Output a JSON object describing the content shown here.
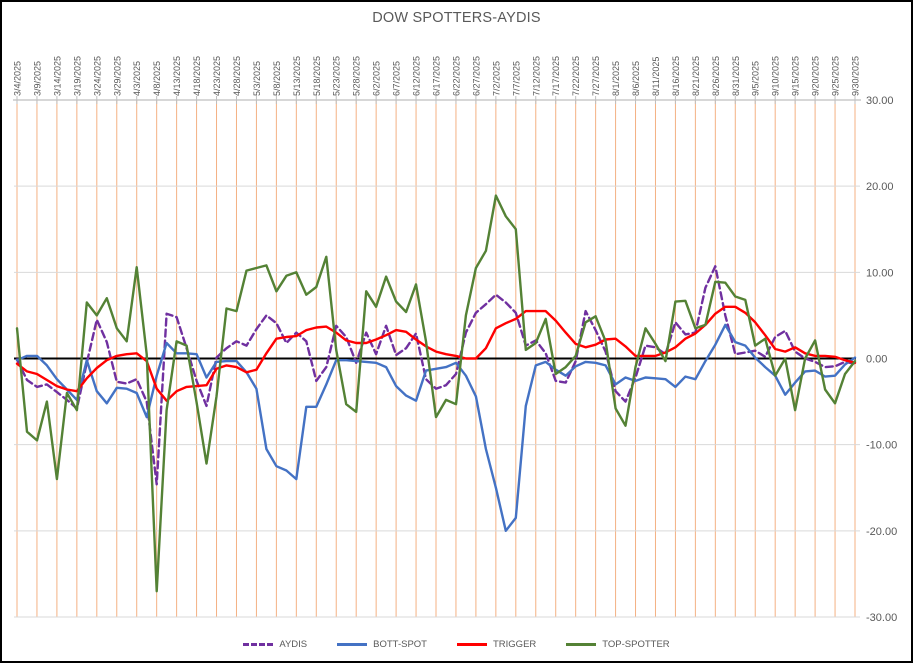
{
  "window": {
    "title": "DOW SPOTTERS-AYDIS"
  },
  "chart_data": {
    "type": "line",
    "title": "DOW SPOTTERS-AYDIS",
    "legend_position": "bottom",
    "ylim": [
      -30,
      30
    ],
    "y_ticks": [
      {
        "label": "30.00",
        "value": 30
      },
      {
        "label": "20.00",
        "value": 20
      },
      {
        "label": "10.00",
        "value": 10
      },
      {
        "label": "0.00",
        "value": 0
      },
      {
        "label": "-10.00",
        "value": -10
      },
      {
        "label": "-20.00",
        "value": -20
      },
      {
        "label": "-30.00",
        "value": -30
      }
    ],
    "x_labels": [
      "3/4/2025",
      "3/9/2025",
      "3/14/2025",
      "3/19/2025",
      "3/24/2025",
      "3/29/2025",
      "4/3/2025",
      "4/8/2025",
      "4/13/2025",
      "4/18/2025",
      "4/23/2025",
      "4/28/2025",
      "5/3/2025",
      "5/8/2025",
      "5/13/2025",
      "5/18/2025",
      "5/23/2025",
      "5/28/2025",
      "6/2/2025",
      "6/7/2025",
      "6/12/2025",
      "6/17/2025",
      "6/22/2025",
      "6/27/2025",
      "7/2/2025",
      "7/7/2025",
      "7/12/2025",
      "7/17/2025",
      "7/22/2025",
      "7/27/2025",
      "8/1/2025",
      "8/6/2025",
      "8/11/2025",
      "8/16/2025",
      "8/21/2025",
      "8/26/2025",
      "8/31/2025",
      "9/5/2025",
      "9/10/2025",
      "9/15/2025",
      "9/20/2025",
      "9/25/2025",
      "9/30/2025"
    ],
    "samples_per_label": 2,
    "grid": {
      "vertical_color": "#F4B183",
      "horizontal_color": "#D9D9D9",
      "axis_color": "#BFBFBF",
      "zero_line_color": "#000000",
      "label_color": "#595959"
    },
    "series": [
      {
        "name": "AYDIS",
        "color": "#7030A0",
        "dash": true,
        "values": [
          -0.1,
          -2.5,
          -3.3,
          -3.0,
          -3.9,
          -4.8,
          -5.8,
          -0.5,
          4.5,
          1.9,
          -2.7,
          -2.9,
          -2.4,
          -5.0,
          -14.6,
          5.2,
          4.8,
          1.2,
          -2.6,
          -5.5,
          0.1,
          1.2,
          2.0,
          1.5,
          3.4,
          5.0,
          4.1,
          1.8,
          3.0,
          2.0,
          -2.6,
          -1.0,
          3.8,
          2.5,
          -0.5,
          3.0,
          0.5,
          3.8,
          0.4,
          1.2,
          2.9,
          -2.4,
          -3.5,
          -3.1,
          -1.8,
          3.0,
          5.3,
          6.3,
          7.4,
          6.5,
          5.3,
          1.5,
          2.1,
          0.6,
          -2.6,
          -2.8,
          -0.3,
          5.5,
          3.3,
          0.8,
          -3.8,
          -5.0,
          -2.2,
          1.5,
          1.3,
          0.5,
          4.2,
          2.8,
          3.0,
          8.2,
          10.7,
          5.0,
          0.5,
          0.7,
          0.9,
          0.2,
          2.5,
          3.2,
          0.8,
          0.0,
          -0.4,
          -1.0,
          -0.9,
          -0.4,
          -0.6
        ]
      },
      {
        "name": "BOTT-SPOT",
        "color": "#4472C4",
        "dash": false,
        "values": [
          -0.2,
          0.3,
          0.3,
          -0.8,
          -2.4,
          -3.6,
          -4.8,
          -0.2,
          -3.8,
          -5.2,
          -3.4,
          -3.5,
          -4.0,
          -6.8,
          -2.0,
          1.8,
          0.6,
          0.6,
          0.5,
          -2.2,
          -0.4,
          -0.3,
          -0.3,
          -1.6,
          -3.5,
          -10.5,
          -12.5,
          -13.0,
          -14.0,
          -5.6,
          -5.6,
          -3.0,
          -0.2,
          -0.2,
          -0.3,
          -0.4,
          -0.5,
          -1.0,
          -3.2,
          -4.3,
          -4.9,
          -1.4,
          -1.2,
          -1.0,
          -0.5,
          -2.0,
          -4.4,
          -10.5,
          -15.0,
          -20.0,
          -18.5,
          -5.5,
          -0.8,
          -0.4,
          -1.3,
          -2.0,
          -0.9,
          -0.4,
          -0.5,
          -0.8,
          -3.0,
          -2.2,
          -2.6,
          -2.2,
          -2.3,
          -2.4,
          -3.3,
          -2.1,
          -2.4,
          -0.3,
          1.6,
          3.9,
          1.9,
          1.5,
          0.1,
          -1.0,
          -2.0,
          -4.2,
          -2.8,
          -1.5,
          -1.4,
          -2.1,
          -2.0,
          -0.7,
          0.1
        ]
      },
      {
        "name": "TRIGGER",
        "color": "#FF0000",
        "dash": false,
        "values": [
          -0.6,
          -1.5,
          -1.8,
          -2.5,
          -3.2,
          -3.6,
          -3.8,
          -2.3,
          -1.1,
          -0.2,
          0.3,
          0.5,
          0.6,
          -0.3,
          -3.5,
          -4.9,
          -3.8,
          -3.3,
          -3.2,
          -3.1,
          -1.2,
          -0.8,
          -1.0,
          -1.6,
          -1.3,
          0.6,
          2.3,
          2.5,
          2.6,
          3.3,
          3.6,
          3.7,
          3.0,
          2.1,
          1.8,
          1.8,
          2.2,
          2.7,
          3.3,
          3.1,
          2.2,
          1.4,
          0.8,
          0.5,
          0.3,
          0.0,
          0.0,
          1.2,
          3.5,
          4.1,
          4.6,
          5.5,
          5.5,
          5.5,
          4.4,
          3.0,
          1.7,
          1.3,
          1.6,
          2.2,
          2.3,
          1.4,
          0.3,
          0.3,
          0.3,
          0.7,
          1.3,
          2.3,
          2.9,
          3.9,
          5.2,
          6.0,
          6.0,
          5.3,
          4.2,
          2.7,
          1.1,
          0.8,
          1.3,
          0.6,
          0.3,
          0.3,
          0.2,
          -0.2,
          -0.5
        ]
      },
      {
        "name": "TOP-SPOTTER",
        "color": "#548235",
        "dash": false,
        "values": [
          3.5,
          -8.5,
          -9.5,
          -5.0,
          -14.0,
          -4.0,
          -6.0,
          6.5,
          5.0,
          7.0,
          3.5,
          2.0,
          10.6,
          0.5,
          -27.0,
          -6.0,
          2.0,
          1.5,
          -5.1,
          -12.2,
          -4.4,
          5.8,
          5.5,
          10.2,
          10.5,
          10.8,
          7.8,
          9.6,
          10.0,
          7.4,
          8.3,
          11.8,
          1.0,
          -5.3,
          -6.2,
          7.8,
          6.0,
          9.5,
          6.6,
          5.4,
          8.6,
          2.0,
          -6.8,
          -4.8,
          -5.3,
          5.0,
          10.5,
          12.5,
          18.9,
          16.5,
          15.0,
          1.0,
          1.8,
          4.6,
          -1.8,
          -1.0,
          0.3,
          4.2,
          4.9,
          2.0,
          -5.8,
          -7.8,
          -1.0,
          3.5,
          1.7,
          -0.3,
          6.6,
          6.7,
          3.5,
          3.9,
          8.9,
          8.8,
          7.2,
          6.8,
          1.5,
          2.3,
          -2.0,
          0.0,
          -6.0,
          0.0,
          2.1,
          -3.6,
          -5.2,
          -1.8,
          -0.3
        ]
      }
    ]
  }
}
